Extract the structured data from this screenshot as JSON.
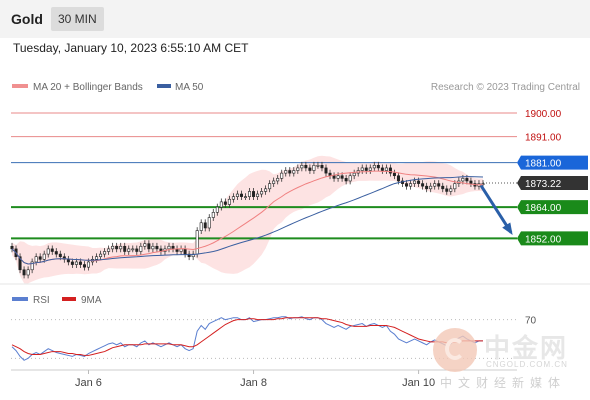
{
  "header": {
    "symbol": "Gold",
    "interval": "30 MIN",
    "datetime": "Tuesday, January 10, 2023 6:55:10 AM CET"
  },
  "colors": {
    "resistance": "#e88a8a",
    "support": "#1e8c1e",
    "pivot": "#3a6fb5",
    "current": "#333333",
    "ma20_band": "#f4a0a0",
    "ma50": "#3a5fa0",
    "rsi": "#5b7fd0",
    "rsi_ma": "#d42020"
  },
  "legend": {
    "ma20": "MA 20 + Bollinger Bands",
    "ma50": "MA 50",
    "rsi": "RSI",
    "rsi_ma": "9MA",
    "copyright": "Research © 2023 Trading Central"
  },
  "chart_data": {
    "type": "candlestick",
    "price_ylim": [
      1838,
      1905
    ],
    "rsi_ylim": [
      20,
      80
    ],
    "rsi_level": 70,
    "levels": [
      {
        "label": "1900.00",
        "value": 1900.0,
        "kind": "resistance"
      },
      {
        "label": "1891.00",
        "value": 1891.0,
        "kind": "resistance"
      },
      {
        "label": "1881.00",
        "value": 1881.0,
        "kind": "pivot"
      },
      {
        "label": "1873.22",
        "value": 1873.22,
        "kind": "current"
      },
      {
        "label": "1864.00",
        "value": 1864.0,
        "kind": "support"
      },
      {
        "label": "1852.00",
        "value": 1852.0,
        "kind": "support"
      }
    ],
    "x_ticks": [
      {
        "label": "Jan 6",
        "index": 19
      },
      {
        "label": "Jan 8",
        "index": 60
      },
      {
        "label": "Jan 10",
        "index": 101
      }
    ],
    "x_count": 118,
    "close": [
      1848,
      1845,
      1840,
      1838,
      1840,
      1843,
      1845,
      1844,
      1846,
      1848,
      1847,
      1846,
      1845,
      1844,
      1843,
      1842,
      1843,
      1842,
      1841,
      1843,
      1844,
      1845,
      1846,
      1847,
      1848,
      1849,
      1848,
      1849,
      1847,
      1848,
      1848,
      1847,
      1849,
      1850,
      1848,
      1849,
      1848,
      1847,
      1848,
      1849,
      1848,
      1847,
      1848,
      1846,
      1845,
      1846,
      1855,
      1858,
      1856,
      1860,
      1862,
      1864,
      1866,
      1865,
      1867,
      1868,
      1869,
      1868,
      1868,
      1870,
      1868,
      1869,
      1870,
      1871,
      1873,
      1874,
      1875,
      1877,
      1878,
      1877,
      1878,
      1879,
      1880,
      1879,
      1878,
      1880,
      1880,
      1879,
      1877,
      1876,
      1875,
      1876,
      1875,
      1874,
      1876,
      1877,
      1878,
      1879,
      1878,
      1879,
      1880,
      1879,
      1878,
      1879,
      1877,
      1876,
      1874,
      1873,
      1872,
      1873,
      1874,
      1873,
      1872,
      1871,
      1872,
      1873,
      1872,
      1871,
      1870,
      1871,
      1873,
      1874,
      1875,
      1874,
      1873,
      1872,
      1873,
      1873
    ],
    "rsi": [
      42,
      38,
      32,
      28,
      30,
      34,
      36,
      34,
      37,
      40,
      38,
      36,
      35,
      34,
      33,
      32,
      34,
      33,
      32,
      35,
      37,
      39,
      41,
      43,
      45,
      46,
      44,
      46,
      42,
      44,
      44,
      42,
      46,
      48,
      44,
      46,
      44,
      42,
      44,
      46,
      44,
      42,
      44,
      40,
      38,
      40,
      58,
      64,
      60,
      66,
      68,
      70,
      72,
      70,
      71,
      72,
      72,
      70,
      70,
      72,
      68,
      69,
      70,
      70,
      71,
      72,
      72,
      73,
      73,
      71,
      72,
      72,
      73,
      71,
      70,
      72,
      72,
      70,
      66,
      64,
      62,
      64,
      62,
      60,
      63,
      64,
      65,
      66,
      63,
      65,
      66,
      64,
      62,
      64,
      58,
      55,
      50,
      48,
      46,
      48,
      50,
      48,
      46,
      44,
      47,
      49,
      47,
      45,
      43,
      45,
      49,
      51,
      53,
      50,
      48,
      46,
      48,
      48
    ],
    "rsi_ma": [
      44,
      42,
      40,
      37,
      35,
      34,
      34,
      34,
      35,
      36,
      37,
      37,
      37,
      36,
      35,
      35,
      34,
      34,
      33,
      33,
      34,
      35,
      36,
      37,
      39,
      41,
      42,
      43,
      44,
      44,
      44,
      44,
      44,
      45,
      45,
      45,
      45,
      45,
      45,
      45,
      44,
      44,
      44,
      43,
      42,
      42,
      44,
      47,
      50,
      53,
      56,
      59,
      62,
      65,
      67,
      69,
      70,
      70,
      70,
      71,
      71,
      70,
      70,
      70,
      70,
      70,
      71,
      71,
      72,
      72,
      72,
      72,
      72,
      72,
      72,
      72,
      72,
      71,
      71,
      70,
      69,
      68,
      67,
      65,
      64,
      63,
      63,
      63,
      63,
      64,
      64,
      64,
      64,
      64,
      63,
      62,
      60,
      58,
      56,
      54,
      52,
      50,
      49,
      48,
      47,
      47,
      47,
      47,
      46,
      46,
      47,
      47,
      48,
      48,
      48,
      48,
      48,
      48
    ]
  }
}
